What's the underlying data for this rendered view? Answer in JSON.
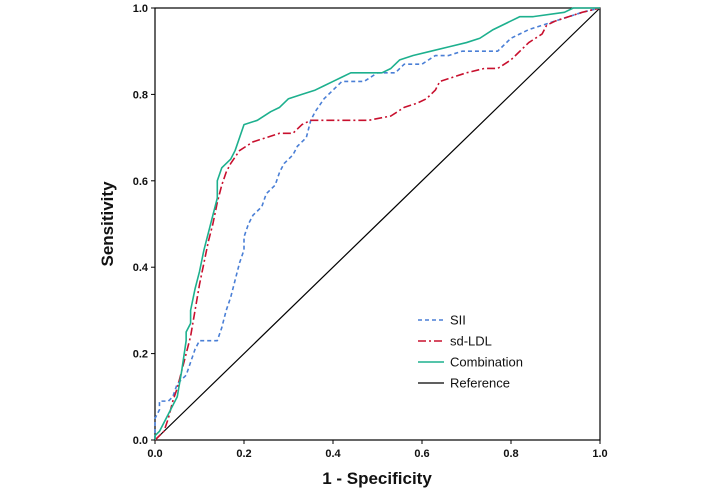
{
  "chart_data": {
    "type": "line",
    "title": "",
    "xlabel": "1 - Specificity",
    "ylabel": "Sensitivity",
    "xlim": [
      0,
      1
    ],
    "ylim": [
      0,
      1
    ],
    "xticks": [
      "0.0",
      "0.2",
      "0.4",
      "0.6",
      "0.8",
      "1.0"
    ],
    "yticks": [
      "0.0",
      "0.2",
      "0.4",
      "0.6",
      "0.8",
      "1.0"
    ],
    "grid": false,
    "legend_position": "bottom-right",
    "series": [
      {
        "name": "SII",
        "color": "#4a7fd6",
        "dash": "dashed",
        "points": [
          [
            0,
            0
          ],
          [
            0,
            0.05
          ],
          [
            0.01,
            0.07
          ],
          [
            0.01,
            0.09
          ],
          [
            0.03,
            0.09
          ],
          [
            0.04,
            0.1
          ],
          [
            0.05,
            0.13
          ],
          [
            0.07,
            0.15
          ],
          [
            0.08,
            0.18
          ],
          [
            0.09,
            0.21
          ],
          [
            0.1,
            0.23
          ],
          [
            0.14,
            0.23
          ],
          [
            0.15,
            0.26
          ],
          [
            0.16,
            0.3
          ],
          [
            0.17,
            0.33
          ],
          [
            0.18,
            0.37
          ],
          [
            0.19,
            0.41
          ],
          [
            0.2,
            0.44
          ],
          [
            0.2,
            0.47
          ],
          [
            0.21,
            0.5
          ],
          [
            0.22,
            0.52
          ],
          [
            0.24,
            0.54
          ],
          [
            0.25,
            0.57
          ],
          [
            0.27,
            0.59
          ],
          [
            0.28,
            0.62
          ],
          [
            0.29,
            0.64
          ],
          [
            0.31,
            0.66
          ],
          [
            0.32,
            0.68
          ],
          [
            0.34,
            0.7
          ],
          [
            0.35,
            0.74
          ],
          [
            0.36,
            0.76
          ],
          [
            0.38,
            0.79
          ],
          [
            0.4,
            0.81
          ],
          [
            0.42,
            0.83
          ],
          [
            0.47,
            0.83
          ],
          [
            0.5,
            0.85
          ],
          [
            0.54,
            0.85
          ],
          [
            0.56,
            0.87
          ],
          [
            0.6,
            0.87
          ],
          [
            0.63,
            0.89
          ],
          [
            0.66,
            0.89
          ],
          [
            0.69,
            0.9
          ],
          [
            0.77,
            0.9
          ],
          [
            0.8,
            0.93
          ],
          [
            0.84,
            0.95
          ],
          [
            0.87,
            0.96
          ],
          [
            0.9,
            0.97
          ],
          [
            0.93,
            0.98
          ],
          [
            0.96,
            0.99
          ],
          [
            1,
            1
          ]
        ]
      },
      {
        "name": "sd-LDL",
        "color": "#c8102e",
        "dash": "dashdot",
        "points": [
          [
            0,
            0
          ],
          [
            0.02,
            0.02
          ],
          [
            0.03,
            0.05
          ],
          [
            0.04,
            0.09
          ],
          [
            0.05,
            0.12
          ],
          [
            0.06,
            0.16
          ],
          [
            0.07,
            0.2
          ],
          [
            0.08,
            0.24
          ],
          [
            0.09,
            0.3
          ],
          [
            0.1,
            0.36
          ],
          [
            0.11,
            0.41
          ],
          [
            0.12,
            0.46
          ],
          [
            0.13,
            0.5
          ],
          [
            0.14,
            0.55
          ],
          [
            0.15,
            0.59
          ],
          [
            0.16,
            0.62
          ],
          [
            0.17,
            0.64
          ],
          [
            0.19,
            0.67
          ],
          [
            0.22,
            0.69
          ],
          [
            0.25,
            0.7
          ],
          [
            0.28,
            0.71
          ],
          [
            0.31,
            0.71
          ],
          [
            0.33,
            0.73
          ],
          [
            0.35,
            0.74
          ],
          [
            0.48,
            0.74
          ],
          [
            0.53,
            0.75
          ],
          [
            0.56,
            0.77
          ],
          [
            0.59,
            0.78
          ],
          [
            0.61,
            0.79
          ],
          [
            0.63,
            0.81
          ],
          [
            0.64,
            0.83
          ],
          [
            0.67,
            0.84
          ],
          [
            0.7,
            0.85
          ],
          [
            0.74,
            0.86
          ],
          [
            0.77,
            0.86
          ],
          [
            0.8,
            0.88
          ],
          [
            0.82,
            0.9
          ],
          [
            0.84,
            0.92
          ],
          [
            0.87,
            0.94
          ],
          [
            0.88,
            0.96
          ],
          [
            0.9,
            0.97
          ],
          [
            0.93,
            0.98
          ],
          [
            0.96,
            0.99
          ],
          [
            1,
            1
          ]
        ]
      },
      {
        "name": "Combination",
        "color": "#1db08e",
        "dash": "solid",
        "points": [
          [
            0,
            0
          ],
          [
            0,
            0.01
          ],
          [
            0.01,
            0.02
          ],
          [
            0.02,
            0.04
          ],
          [
            0.03,
            0.06
          ],
          [
            0.04,
            0.08
          ],
          [
            0.05,
            0.1
          ],
          [
            0.06,
            0.16
          ],
          [
            0.07,
            0.23
          ],
          [
            0.07,
            0.25
          ],
          [
            0.08,
            0.27
          ],
          [
            0.08,
            0.3
          ],
          [
            0.09,
            0.35
          ],
          [
            0.1,
            0.39
          ],
          [
            0.11,
            0.44
          ],
          [
            0.12,
            0.48
          ],
          [
            0.13,
            0.52
          ],
          [
            0.14,
            0.56
          ],
          [
            0.14,
            0.6
          ],
          [
            0.15,
            0.63
          ],
          [
            0.17,
            0.65
          ],
          [
            0.18,
            0.67
          ],
          [
            0.19,
            0.7
          ],
          [
            0.2,
            0.73
          ],
          [
            0.23,
            0.74
          ],
          [
            0.26,
            0.76
          ],
          [
            0.28,
            0.77
          ],
          [
            0.3,
            0.79
          ],
          [
            0.33,
            0.8
          ],
          [
            0.36,
            0.81
          ],
          [
            0.38,
            0.82
          ],
          [
            0.4,
            0.83
          ],
          [
            0.42,
            0.84
          ],
          [
            0.44,
            0.85
          ],
          [
            0.51,
            0.85
          ],
          [
            0.53,
            0.86
          ],
          [
            0.55,
            0.88
          ],
          [
            0.58,
            0.89
          ],
          [
            0.62,
            0.9
          ],
          [
            0.66,
            0.91
          ],
          [
            0.7,
            0.92
          ],
          [
            0.73,
            0.93
          ],
          [
            0.76,
            0.95
          ],
          [
            0.8,
            0.97
          ],
          [
            0.82,
            0.98
          ],
          [
            0.85,
            0.98
          ],
          [
            0.92,
            0.99
          ],
          [
            0.94,
            1
          ],
          [
            1,
            1
          ]
        ]
      },
      {
        "name": "Reference",
        "color": "#000000",
        "dash": "solid",
        "points": [
          [
            0,
            0
          ],
          [
            1,
            1
          ]
        ]
      }
    ]
  }
}
